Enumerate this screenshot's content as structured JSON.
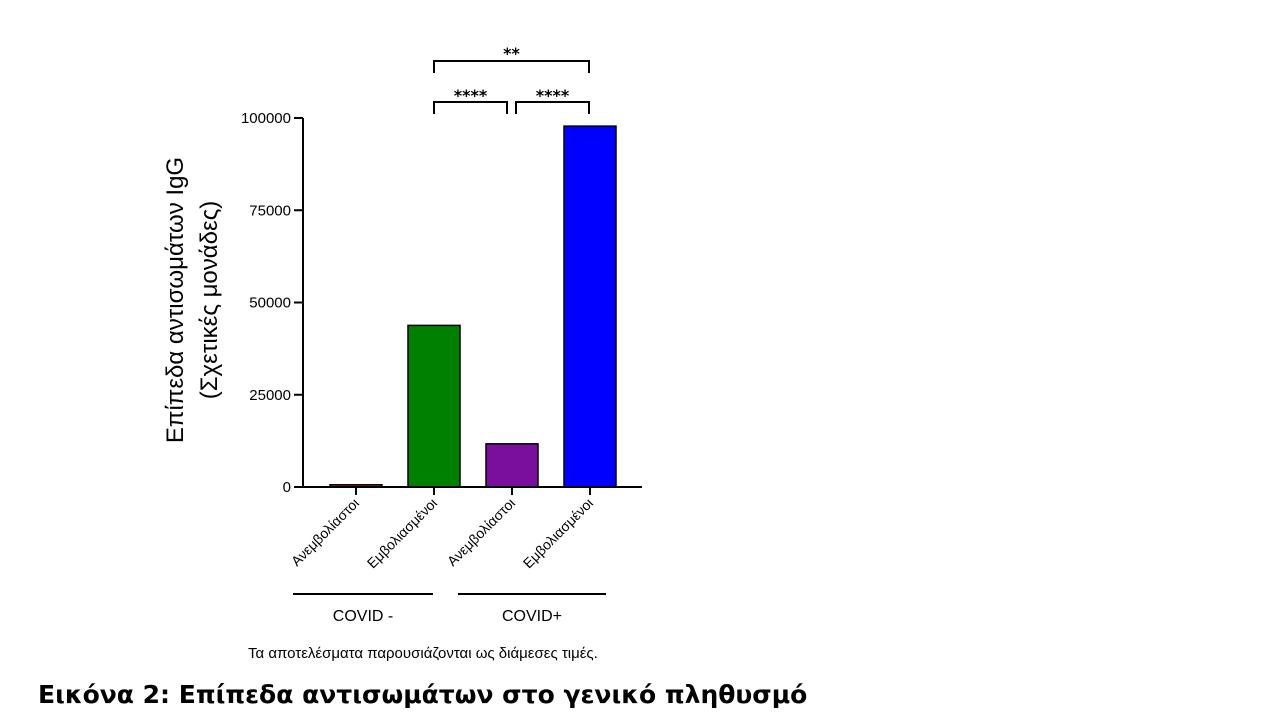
{
  "chart_data": {
    "type": "bar",
    "categories": [
      "Ανεμβολίαστοι",
      "Εμβολιασμένοι",
      "Ανεμβολίαστοι",
      "Εμβολιασμένοι"
    ],
    "values": [
      600,
      43800,
      11700,
      97800
    ],
    "colors": [
      "#d62728",
      "#008000",
      "#7a0f9e",
      "#0000ff"
    ],
    "ylabel_line1": "Επίπεδα αντισωμάτων IgG",
    "ylabel_line2": "(Σχετικές μονάδες)",
    "ylim": [
      0,
      100000
    ],
    "yticks": [
      "0",
      "25000",
      "50000",
      "75000",
      "100000"
    ],
    "ytick_values": [
      0,
      25000,
      50000,
      75000,
      100000
    ],
    "groups": [
      {
        "label": "COVID -",
        "categories": [
          0,
          1
        ]
      },
      {
        "label": "COVID+",
        "categories": [
          2,
          3
        ]
      }
    ],
    "significance": [
      {
        "from": 1,
        "to": 3,
        "label": "**"
      },
      {
        "from": 1,
        "to": 2,
        "label": "****"
      },
      {
        "from": 2,
        "to": 3,
        "label": "****"
      }
    ],
    "grid": false
  },
  "note": "Τα αποτελέσματα παρουσιάζονται ως διάμεσες τιμές.",
  "caption": "Εικόνα 2: Επίπεδα αντισωμάτων στο γενικό πληθυσμό"
}
